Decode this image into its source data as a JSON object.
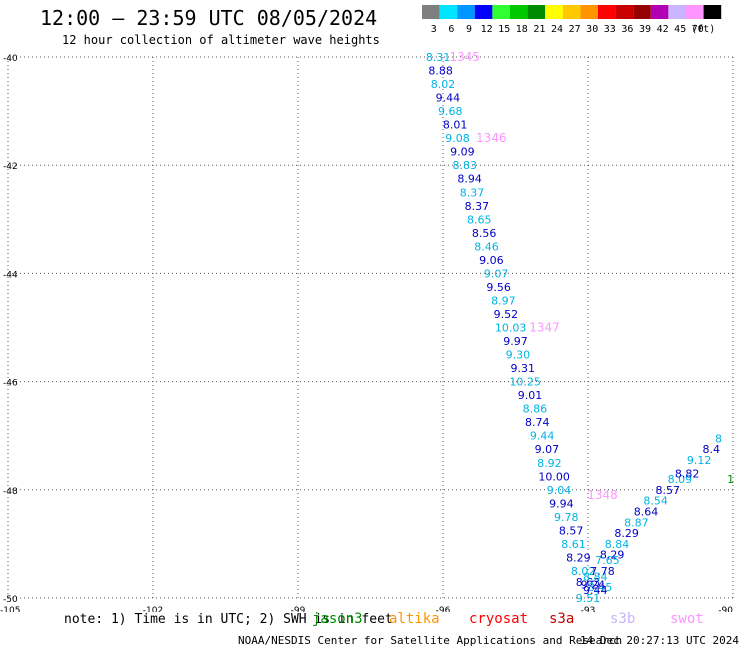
{
  "title": "12:00 – 23:59 UTC 08/05/2024",
  "subtitle": "12 hour collection of altimeter wave heights",
  "color_scale": {
    "unit": "(ft)",
    "bins": [
      {
        "label": "3",
        "color": "#7f7f7f"
      },
      {
        "label": "6",
        "color": "#00e6ff"
      },
      {
        "label": "9",
        "color": "#0096ff"
      },
      {
        "label": "12",
        "color": "#0000ff"
      },
      {
        "label": "15",
        "color": "#32ff32"
      },
      {
        "label": "18",
        "color": "#00c800"
      },
      {
        "label": "21",
        "color": "#008c00"
      },
      {
        "label": "24",
        "color": "#ffff00"
      },
      {
        "label": "27",
        "color": "#ffc800"
      },
      {
        "label": "30",
        "color": "#ff9600"
      },
      {
        "label": "33",
        "color": "#ff0000"
      },
      {
        "label": "36",
        "color": "#c80000"
      },
      {
        "label": "39",
        "color": "#960000"
      },
      {
        "label": "42",
        "color": "#b400b4"
      },
      {
        "label": "45",
        "color": "#c8b4ff"
      },
      {
        "label": "70",
        "color": "#ff96ff"
      },
      {
        "label": "",
        "color": "#000000"
      }
    ]
  },
  "note": "note: 1) Time is in UTC; 2) SWH is in feet",
  "legend": [
    {
      "label": "jason3",
      "color": "#008c00"
    },
    {
      "label": "altika",
      "color": "#ff9600"
    },
    {
      "label": "cryosat",
      "color": "#ff0000"
    },
    {
      "label": "s3a",
      "color": "#c80000"
    },
    {
      "label": "s3b",
      "color": "#c8b4ff"
    },
    {
      "label": "swot",
      "color": "#ff96ff"
    }
  ],
  "credit": "NOAA/NESDIS Center for Satellite Applications and Research",
  "timestamp": "14 Dec 20:27:13 UTC 2024",
  "chart_data": {
    "type": "scatter",
    "xlim": [
      -105,
      -90
    ],
    "ylim": [
      -50,
      -40
    ],
    "x_ticks": [
      "-105",
      "-102",
      "-99",
      "-96",
      "-93",
      "-90"
    ],
    "y_ticks": [
      "-40",
      "-42",
      "-44",
      "-46",
      "-48",
      "-50"
    ],
    "grid": true,
    "series": [
      {
        "satellite": "swot",
        "color_light": "#00b4e6",
        "color_dark": "#0000c8",
        "points": [
          {
            "lon": -96.1,
            "lat": -40.0,
            "swh": "8.31"
          },
          {
            "lon": -96.05,
            "lat": -40.25,
            "swh": "8.88"
          },
          {
            "lon": -96.0,
            "lat": -40.5,
            "swh": "8.02"
          },
          {
            "lon": -95.9,
            "lat": -40.75,
            "swh": "9.44"
          },
          {
            "lon": -95.85,
            "lat": -41.0,
            "swh": "9.68"
          },
          {
            "lon": -95.75,
            "lat": -41.25,
            "swh": "8.01"
          },
          {
            "lon": -95.7,
            "lat": -41.5,
            "swh": "9.08"
          },
          {
            "lon": -95.6,
            "lat": -41.75,
            "swh": "9.09"
          },
          {
            "lon": -95.55,
            "lat": -42.0,
            "swh": "8.83"
          },
          {
            "lon": -95.45,
            "lat": -42.25,
            "swh": "8.94"
          },
          {
            "lon": -95.4,
            "lat": -42.5,
            "swh": "8.37"
          },
          {
            "lon": -95.3,
            "lat": -42.75,
            "swh": "8.37"
          },
          {
            "lon": -95.25,
            "lat": -43.0,
            "swh": "8.65"
          },
          {
            "lon": -95.15,
            "lat": -43.25,
            "swh": "8.56"
          },
          {
            "lon": -95.1,
            "lat": -43.5,
            "swh": "8.46"
          },
          {
            "lon": -95.0,
            "lat": -43.75,
            "swh": "9.06"
          },
          {
            "lon": -94.9,
            "lat": -44.0,
            "swh": "9.07"
          },
          {
            "lon": -94.85,
            "lat": -44.25,
            "swh": "9.56"
          },
          {
            "lon": -94.75,
            "lat": -44.5,
            "swh": "8.97"
          },
          {
            "lon": -94.7,
            "lat": -44.75,
            "swh": "9.52"
          },
          {
            "lon": -94.6,
            "lat": -45.0,
            "swh": "10.03"
          },
          {
            "lon": -94.5,
            "lat": -45.25,
            "swh": "9.97"
          },
          {
            "lon": -94.45,
            "lat": -45.5,
            "swh": "9.30"
          },
          {
            "lon": -94.35,
            "lat": -45.75,
            "swh": "9.31"
          },
          {
            "lon": -94.3,
            "lat": -46.0,
            "swh": "10.25"
          },
          {
            "lon": -94.2,
            "lat": -46.25,
            "swh": "9.01"
          },
          {
            "lon": -94.1,
            "lat": -46.5,
            "swh": "8.86"
          },
          {
            "lon": -94.05,
            "lat": -46.75,
            "swh": "8.74"
          },
          {
            "lon": -93.95,
            "lat": -47.0,
            "swh": "9.44"
          },
          {
            "lon": -93.85,
            "lat": -47.25,
            "swh": "9.07"
          },
          {
            "lon": -93.8,
            "lat": -47.5,
            "swh": "8.92"
          },
          {
            "lon": -93.7,
            "lat": -47.75,
            "swh": "10.00"
          },
          {
            "lon": -93.6,
            "lat": -48.0,
            "swh": "9.04"
          },
          {
            "lon": -93.55,
            "lat": -48.25,
            "swh": "9.94"
          },
          {
            "lon": -93.45,
            "lat": -48.5,
            "swh": "9.78"
          },
          {
            "lon": -93.35,
            "lat": -48.75,
            "swh": "8.57"
          },
          {
            "lon": -93.3,
            "lat": -49.0,
            "swh": "8.61"
          },
          {
            "lon": -93.2,
            "lat": -49.25,
            "swh": "8.29"
          },
          {
            "lon": -93.1,
            "lat": -49.5,
            "swh": "8.02"
          },
          {
            "lon": -93.0,
            "lat": -49.7,
            "swh": "8.63"
          },
          {
            "lon": -93.0,
            "lat": -50.0,
            "swh": "9.51"
          },
          {
            "lon": -92.85,
            "lat": -49.85,
            "swh": "9.44"
          },
          {
            "lon": -92.75,
            "lat": -49.8,
            "swh": "8.45"
          },
          {
            "lon": -92.9,
            "lat": -49.75,
            "swh": "9.24"
          },
          {
            "lon": -92.85,
            "lat": -49.6,
            "swh": "8.84"
          },
          {
            "lon": -92.7,
            "lat": -49.5,
            "swh": "7.78"
          },
          {
            "lon": -92.6,
            "lat": -49.3,
            "swh": "7.65"
          },
          {
            "lon": -92.5,
            "lat": -49.2,
            "swh": "8.29"
          },
          {
            "lon": -92.4,
            "lat": -49.0,
            "swh": "8.84"
          },
          {
            "lon": -92.2,
            "lat": -48.8,
            "swh": "8.29"
          },
          {
            "lon": -92.0,
            "lat": -48.6,
            "swh": "8.87"
          },
          {
            "lon": -91.8,
            "lat": -48.4,
            "swh": "8.64"
          },
          {
            "lon": -91.6,
            "lat": -48.2,
            "swh": "8.54"
          },
          {
            "lon": -91.35,
            "lat": -48.0,
            "swh": "8.57"
          },
          {
            "lon": -91.1,
            "lat": -47.8,
            "swh": "8.09"
          },
          {
            "lon": -90.95,
            "lat": -47.7,
            "swh": "8.82"
          },
          {
            "lon": -90.7,
            "lat": -47.45,
            "swh": "9.12"
          },
          {
            "lon": -90.45,
            "lat": -47.25,
            "swh": "8.4"
          },
          {
            "lon": -90.3,
            "lat": -47.05,
            "swh": "8"
          }
        ]
      },
      {
        "satellite": "jason3",
        "color_light": "#008c00",
        "color_dark": "#008c00",
        "points": [
          {
            "lon": -90.05,
            "lat": -47.8,
            "swh": "1"
          }
        ]
      }
    ],
    "pass_labels": [
      {
        "lon": -95.55,
        "lat": -40.0,
        "text": "1345"
      },
      {
        "lon": -95.0,
        "lat": -41.5,
        "text": "1346"
      },
      {
        "lon": -93.9,
        "lat": -45.0,
        "text": "1347"
      },
      {
        "lon": -92.7,
        "lat": -48.1,
        "text": "1348"
      }
    ]
  }
}
